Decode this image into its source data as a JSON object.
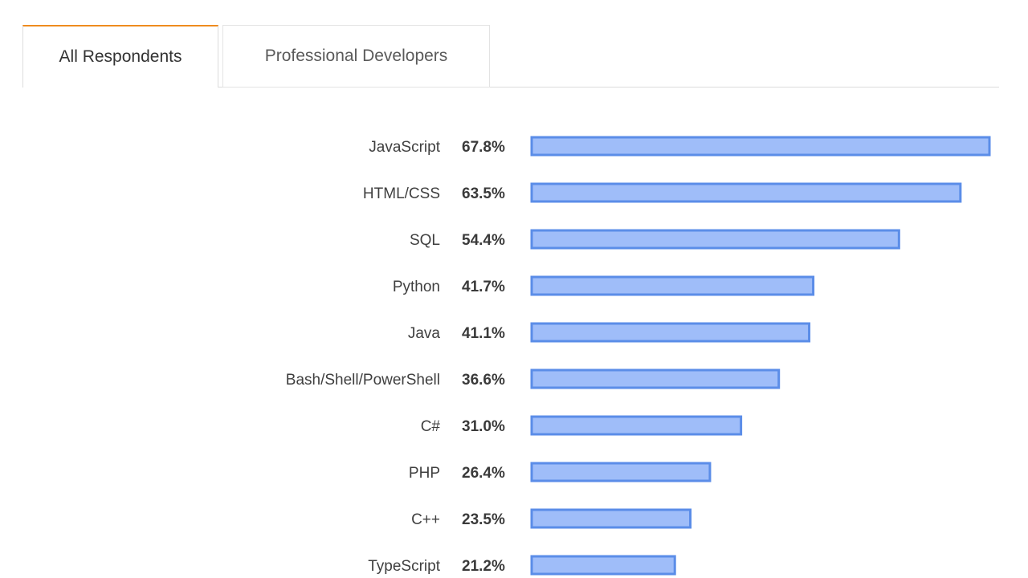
{
  "tabs": [
    {
      "label": "All Respondents",
      "active": true
    },
    {
      "label": "Professional Developers",
      "active": false
    }
  ],
  "colors": {
    "bar_fill": "#9fbdf9",
    "bar_stroke": "#5b8de8",
    "tab_accent": "#ef8b1f"
  },
  "chart_data": {
    "type": "bar",
    "orientation": "horizontal",
    "title": "",
    "xlabel": "",
    "ylabel": "",
    "categories": [
      "JavaScript",
      "HTML/CSS",
      "SQL",
      "Python",
      "Java",
      "Bash/Shell/PowerShell",
      "C#",
      "PHP",
      "C++",
      "TypeScript"
    ],
    "values": [
      67.8,
      63.5,
      54.4,
      41.7,
      41.1,
      36.6,
      31.0,
      26.4,
      23.5,
      21.2
    ],
    "value_labels": [
      "67.8%",
      "63.5%",
      "54.4%",
      "41.7%",
      "41.1%",
      "36.6%",
      "31.0%",
      "26.4%",
      "23.5%",
      "21.2%"
    ],
    "xlim": [
      0,
      67.8
    ],
    "grid": false,
    "legend": "none"
  }
}
